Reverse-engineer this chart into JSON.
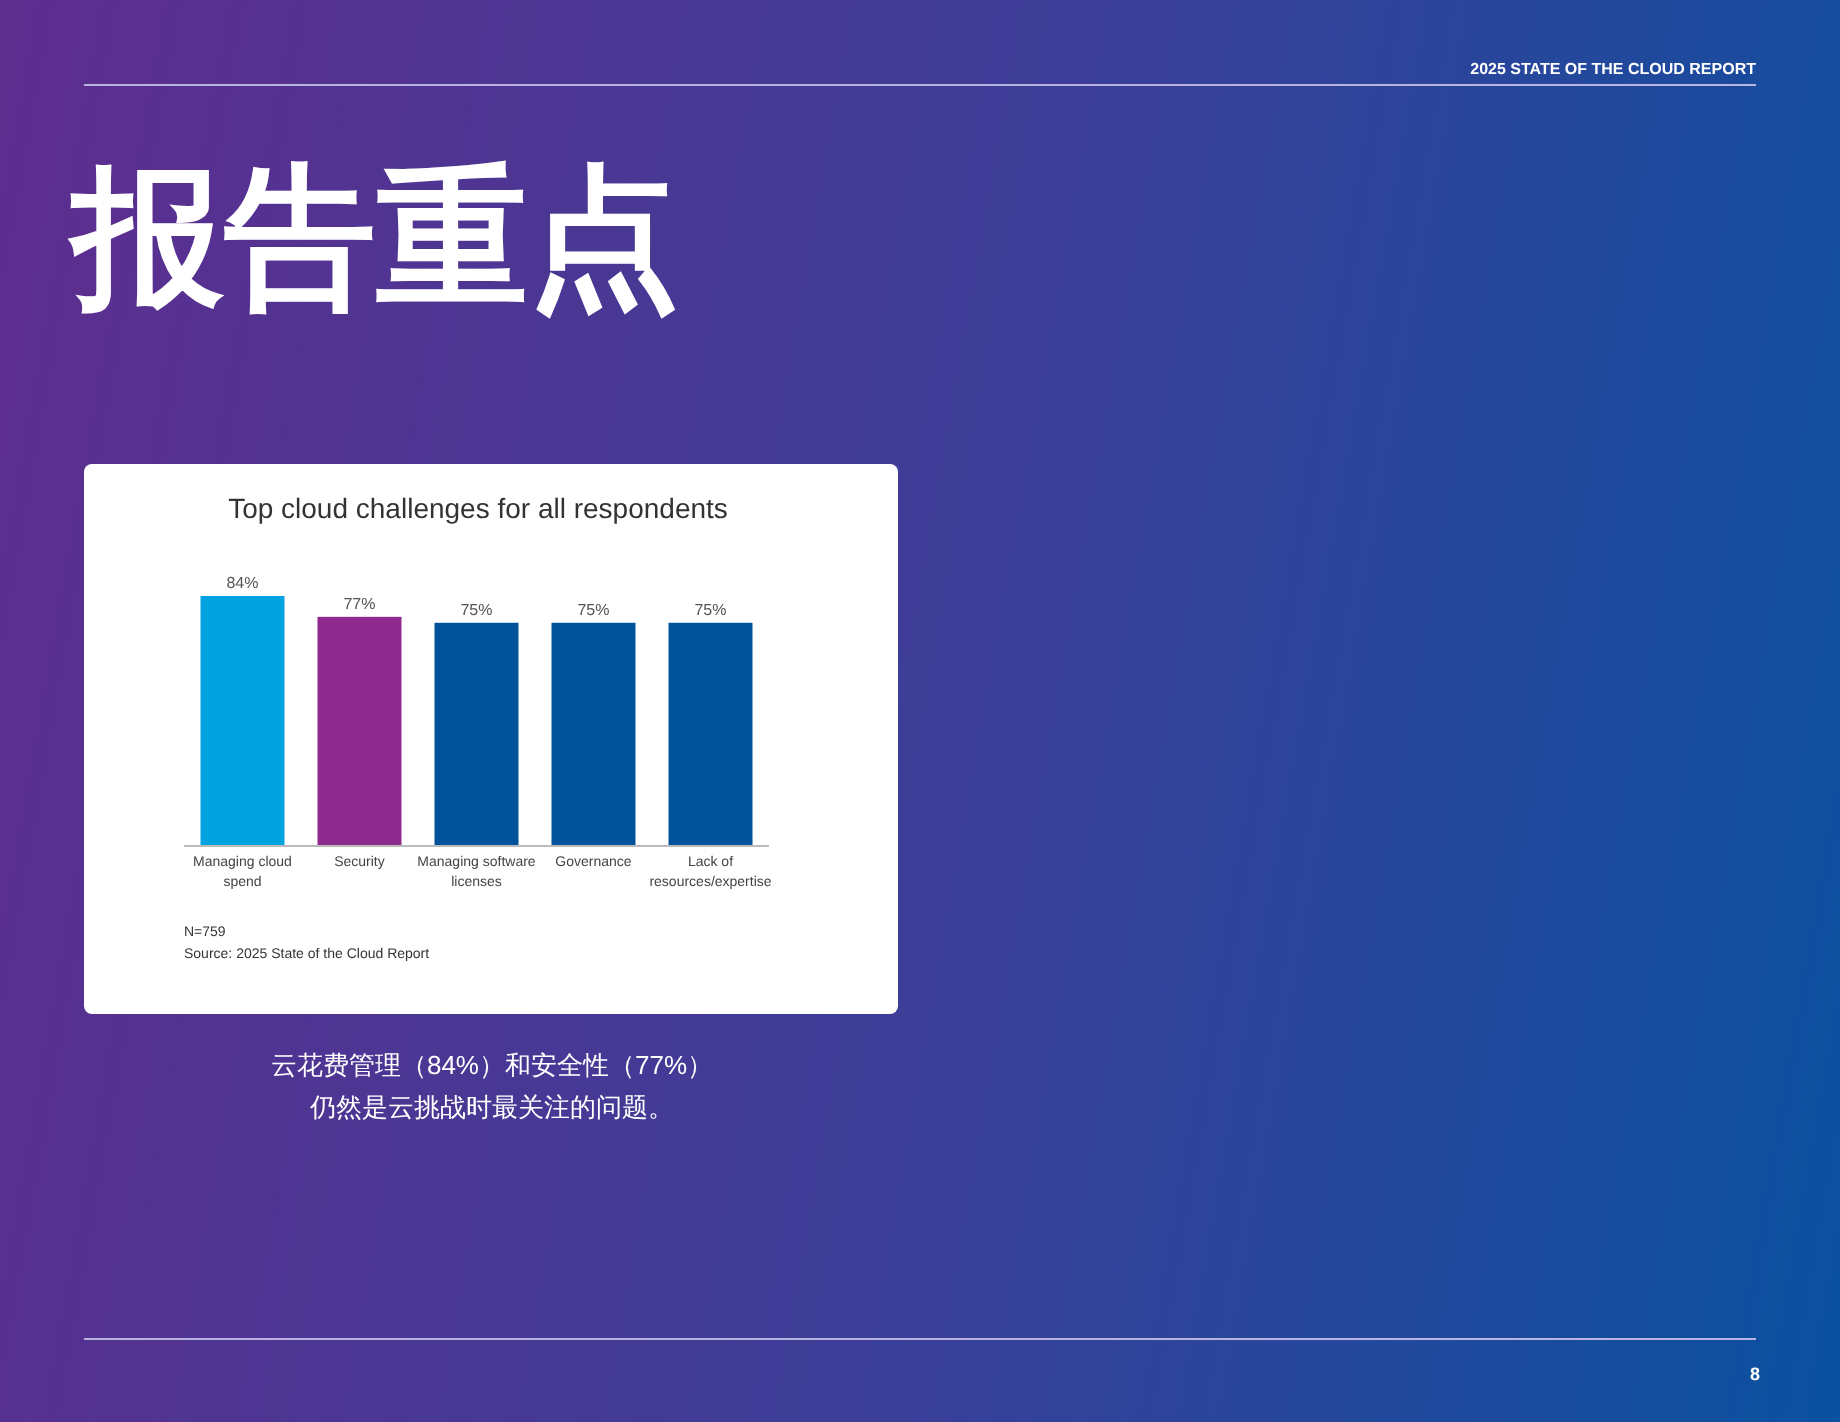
{
  "chart_data": {
    "type": "bar",
    "title": "Top cloud challenges for all respondents",
    "subtitle": "报告重点",
    "categories": [
      "Managing cloud spend",
      "Security",
      "Managing software licenses",
      "Governance",
      "Lack of resources/expertise"
    ],
    "values": [
      84,
      77,
      75,
      75,
      75
    ],
    "colors": [
      "#00a3e0",
      "#8e2a8e",
      "#00529b",
      "#00529b",
      "#00529b"
    ],
    "value_labels": [
      "84%",
      "77%",
      "75%",
      "75%",
      "75%"
    ],
    "annotations": [
      "N=759",
      "Source: 2025 State of the Cloud Report",
      "云花费管理（84%）和安全性（77%）仍然是云挑战时最关注的问题。",
      "2025 STATE OF THE CLOUD REPORT",
      "8"
    ],
    "orientation": "vertical"
  }
}
